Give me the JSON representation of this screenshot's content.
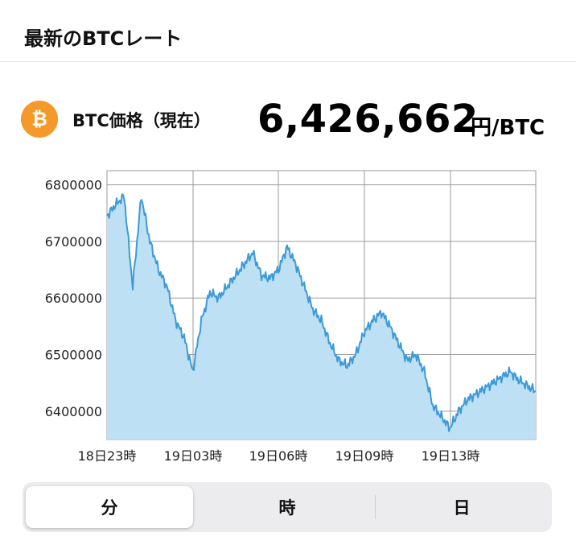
{
  "header": {
    "title": "最新のBTCレート"
  },
  "price_panel": {
    "coin_symbol": "₿",
    "label": "BTC価格（現在）",
    "price": "6,426,662",
    "unit": "円/BTC"
  },
  "chart_data": {
    "type": "area",
    "x_tick_labels": [
      "18日23時",
      "19日03時",
      "19日06時",
      "19日09時",
      "19日13時"
    ],
    "y_tick_labels": [
      "6800000",
      "6700000",
      "6600000",
      "6500000",
      "6400000"
    ],
    "ylim": [
      6350000,
      6825000
    ],
    "grid": true,
    "line_color": "#3d9ad8",
    "fill_color": "#bde0f4",
    "x": [
      0,
      2,
      4,
      6,
      8,
      10,
      12,
      14,
      16,
      18,
      20,
      22,
      24,
      26,
      28,
      30,
      32,
      34,
      36,
      38,
      40,
      42,
      44,
      46,
      48,
      50,
      52,
      54,
      56,
      58,
      60,
      62,
      64,
      66,
      68,
      70,
      72,
      74,
      76,
      78,
      80,
      82,
      84,
      86,
      88,
      90,
      92,
      94,
      96,
      98,
      100
    ],
    "y": [
      6745000,
      6765000,
      6780000,
      6620000,
      6780000,
      6700000,
      6650000,
      6620000,
      6560000,
      6530000,
      6470000,
      6560000,
      6610000,
      6600000,
      6620000,
      6640000,
      6660000,
      6680000,
      6640000,
      6635000,
      6650000,
      6690000,
      6660000,
      6620000,
      6580000,
      6560000,
      6520000,
      6490000,
      6480000,
      6500000,
      6540000,
      6560000,
      6575000,
      6550000,
      6520000,
      6490000,
      6500000,
      6470000,
      6410000,
      6390000,
      6370000,
      6400000,
      6420000,
      6430000,
      6440000,
      6450000,
      6460000,
      6470000,
      6455000,
      6445000,
      6435000
    ]
  },
  "interval_selector": {
    "options": [
      "分",
      "時",
      "日"
    ],
    "selected": "分"
  }
}
